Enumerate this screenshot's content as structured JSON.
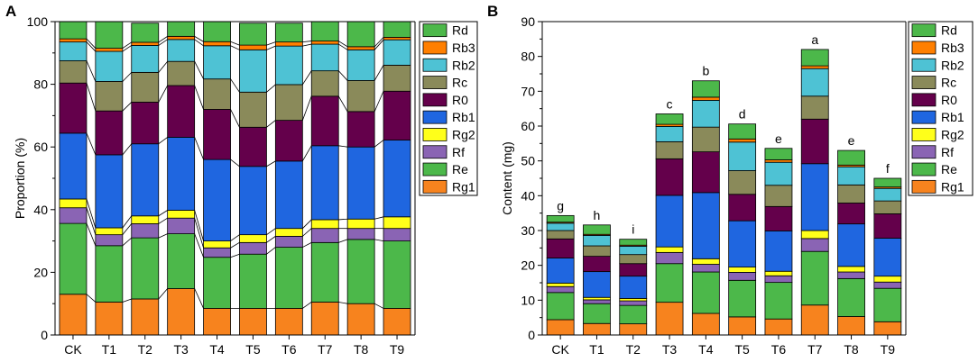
{
  "chart_data": [
    {
      "panel": "A",
      "type": "bar",
      "stacked": true,
      "ylabel": "Proportion (%)",
      "xlabel": "",
      "ylim": [
        0,
        100
      ],
      "yticks": [
        0,
        20,
        40,
        60,
        80,
        100
      ],
      "categories": [
        "CK",
        "T1",
        "T2",
        "T3",
        "T4",
        "T5",
        "T6",
        "T7",
        "T8",
        "T9"
      ],
      "series": [
        {
          "name": "Rg1",
          "color": "#F7831E",
          "values": [
            13.0,
            10.5,
            11.5,
            14.8,
            8.5,
            8.5,
            8.5,
            10.5,
            10.0,
            8.5
          ]
        },
        {
          "name": "Re",
          "color": "#4CB84A",
          "values": [
            22.6,
            18.0,
            19.5,
            17.5,
            16.3,
            17.3,
            19.5,
            19.0,
            20.5,
            21.5
          ]
        },
        {
          "name": "Rf",
          "color": "#8A64B4",
          "values": [
            5.0,
            3.5,
            4.5,
            5.0,
            3.0,
            3.7,
            3.5,
            4.5,
            3.5,
            4.0
          ]
        },
        {
          "name": "Rg2",
          "color": "#FFFF1A",
          "values": [
            2.8,
            2.2,
            2.5,
            2.5,
            2.2,
            2.5,
            2.5,
            2.8,
            3.0,
            3.7
          ]
        },
        {
          "name": "Rb1",
          "color": "#1F66E0",
          "values": [
            21.0,
            23.3,
            23.0,
            23.3,
            26.0,
            21.8,
            21.5,
            23.6,
            23.0,
            24.5
          ]
        },
        {
          "name": "R0",
          "color": "#64004B",
          "values": [
            16.0,
            14.0,
            13.3,
            16.5,
            16.0,
            12.5,
            13.0,
            15.8,
            11.3,
            15.6
          ]
        },
        {
          "name": "Rc",
          "color": "#8A8A5A",
          "values": [
            7.1,
            9.4,
            9.5,
            7.7,
            9.7,
            11.2,
            11.4,
            8.1,
            9.9,
            8.3
          ]
        },
        {
          "name": "Rb2",
          "color": "#4EC2D4",
          "values": [
            6.0,
            9.6,
            8.6,
            7.0,
            10.6,
            13.5,
            12.3,
            8.5,
            9.8,
            8.1
          ]
        },
        {
          "name": "Rb3",
          "color": "#FF7F00",
          "values": [
            1.0,
            1.0,
            1.0,
            1.0,
            1.3,
            1.5,
            1.3,
            1.0,
            1.0,
            0.8
          ]
        },
        {
          "name": "Rd",
          "color": "#4CB84A",
          "values": [
            5.5,
            8.5,
            6.1,
            4.7,
            6.4,
            7.0,
            6.0,
            6.2,
            8.0,
            5.0
          ]
        }
      ]
    },
    {
      "panel": "B",
      "type": "bar",
      "stacked": true,
      "ylabel": "Content (mg)",
      "xlabel": "",
      "ylim": [
        0,
        90
      ],
      "yticks": [
        0,
        10,
        20,
        30,
        40,
        50,
        60,
        70,
        80,
        90
      ],
      "categories": [
        "CK",
        "T1",
        "T2",
        "T3",
        "T4",
        "T5",
        "T6",
        "T7",
        "T8",
        "T9"
      ],
      "significance": [
        "g",
        "h",
        "i",
        "c",
        "b",
        "d",
        "e",
        "a",
        "e",
        "f"
      ],
      "series": [
        {
          "name": "Rg1",
          "color": "#F7831E",
          "values": [
            4.4,
            3.3,
            3.2,
            9.4,
            6.2,
            5.2,
            4.6,
            8.6,
            5.3,
            3.8
          ]
        },
        {
          "name": "Re",
          "color": "#4CB84A",
          "values": [
            7.8,
            5.7,
            5.3,
            11.1,
            11.9,
            10.5,
            10.5,
            15.4,
            10.9,
            9.6
          ]
        },
        {
          "name": "Rf",
          "color": "#8A64B4",
          "values": [
            1.7,
            1.1,
            1.3,
            3.2,
            2.2,
            2.3,
            1.9,
            3.7,
            1.9,
            1.8
          ]
        },
        {
          "name": "Rg2",
          "color": "#FFFF1A",
          "values": [
            1.0,
            0.7,
            0.7,
            1.6,
            1.6,
            1.5,
            1.3,
            2.3,
            1.6,
            1.7
          ]
        },
        {
          "name": "Rb1",
          "color": "#1F66E0",
          "values": [
            7.2,
            7.4,
            6.4,
            14.8,
            19.0,
            13.3,
            11.6,
            19.2,
            12.2,
            10.9
          ]
        },
        {
          "name": "R0",
          "color": "#64004B",
          "values": [
            5.5,
            4.4,
            3.6,
            10.5,
            11.7,
            7.6,
            7.0,
            12.8,
            6.0,
            7.0
          ]
        },
        {
          "name": "Rc",
          "color": "#8A8A5A",
          "values": [
            2.4,
            3.0,
            2.6,
            4.9,
            7.1,
            6.8,
            6.1,
            6.6,
            5.2,
            3.7
          ]
        },
        {
          "name": "Rb2",
          "color": "#4EC2D4",
          "values": [
            2.1,
            3.0,
            2.4,
            4.4,
            7.7,
            8.2,
            6.6,
            7.9,
            5.2,
            3.6
          ]
        },
        {
          "name": "Rb3",
          "color": "#FF7F00",
          "values": [
            0.3,
            0.3,
            0.3,
            0.6,
            0.9,
            0.9,
            0.7,
            0.8,
            0.5,
            0.4
          ]
        },
        {
          "name": "Rd",
          "color": "#4CB84A",
          "values": [
            1.9,
            2.7,
            1.7,
            3.0,
            4.7,
            4.3,
            3.3,
            4.7,
            4.2,
            2.5
          ]
        }
      ]
    }
  ]
}
